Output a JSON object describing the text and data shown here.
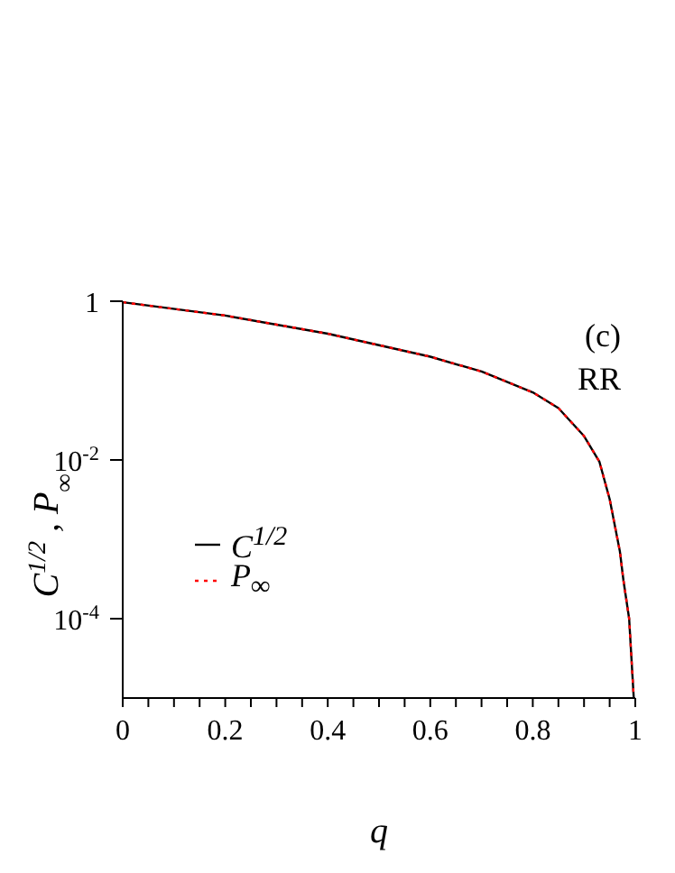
{
  "chart_data": {
    "type": "line",
    "xlabel": "q",
    "ylabel": "C$^{1/2}$ ,  P$_{∞}$",
    "annotations": [
      "(c)",
      "RR"
    ],
    "x": [
      0,
      0.2,
      0.4,
      0.6,
      0.7,
      0.8,
      0.85,
      0.9,
      0.93,
      0.95,
      0.97,
      0.977,
      0.988,
      0.997
    ],
    "series": [
      {
        "name": "C$^{1/2}$",
        "color": "#000000",
        "line_style": "solid",
        "values": [
          0.97,
          0.66,
          0.39,
          0.2,
          0.13,
          0.071,
          0.045,
          0.02,
          0.0095,
          0.0032,
          0.0007,
          0.0003,
          0.0001,
          1e-05
        ]
      },
      {
        "name": "P$_{∞}$",
        "color": "#ff0000",
        "line_style": "dotted",
        "values": [
          0.97,
          0.66,
          0.39,
          0.2,
          0.13,
          0.071,
          0.045,
          0.02,
          0.0095,
          0.0032,
          0.0007,
          0.0003,
          0.0001,
          1e-05
        ]
      }
    ],
    "xlim": [
      0,
      1
    ],
    "xticks": [
      0,
      {
        "value": 0.05,
        "label": null
      },
      0.2,
      {
        "value": 0.1,
        "label": null
      },
      {
        "value": 0.15,
        "label": null
      },
      {
        "value": 0.25,
        "label": null
      },
      {
        "value": 0.3,
        "label": null
      },
      {
        "value": 0.35,
        "label": null
      },
      0.4,
      {
        "value": 0.45,
        "label": null
      },
      {
        "value": 0.5,
        "label": null
      },
      {
        "value": 0.55,
        "label": null
      },
      0.6,
      {
        "value": 0.65,
        "label": null
      },
      {
        "value": 0.7,
        "label": null
      },
      {
        "value": 0.75,
        "label": null
      },
      0.8,
      {
        "value": 0.85,
        "label": null
      },
      {
        "value": 0.9,
        "label": null
      },
      {
        "value": 0.95,
        "label": null
      },
      1
    ],
    "ylim": [
      1e-05,
      1
    ],
    "yticks": [
      {
        "value": 1,
        "label": "1"
      },
      {
        "value": 0.01,
        "label": "10$^{-2}$"
      },
      {
        "value": 0.0001,
        "label": "10$^{-4}$"
      }
    ],
    "log": "y",
    "grid": false,
    "legend": "left"
  }
}
